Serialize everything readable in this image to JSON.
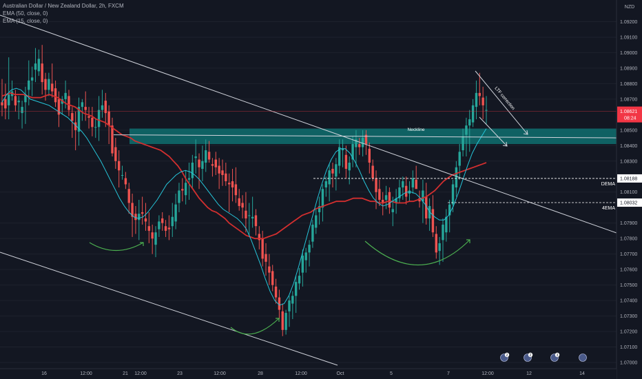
{
  "legend": {
    "symbol_line": "Australian Dollar / New Zealand Dollar, 2h, FXCM",
    "ema50_line": "EMA (50, close, 0)",
    "ema15_line": "EMA (15, close, 0)"
  },
  "currency_label": "NZD",
  "price_tag": {
    "value": "1.08621",
    "countdown": "08:24"
  },
  "level_tags": [
    {
      "name": "DEMA",
      "value": "1.08188"
    },
    {
      "name": "4EMA",
      "value": "1.08032"
    }
  ],
  "annotations": {
    "neckline": "Neckline",
    "ltf_correction": "LTF correction"
  },
  "colors": {
    "background": "#131722",
    "bull": "#26a69a",
    "bear": "#ef5350",
    "ema50": "#d32f2f",
    "ema15": "#26c6da",
    "zone": "#0f6e6e",
    "arc": "#4caf50",
    "line": "#d1d4dc",
    "price": "#f23645"
  },
  "event_badges": [
    "2",
    "2",
    "3",
    ""
  ],
  "chart_data": {
    "type": "candlestick",
    "symbol": "AUDNZD",
    "timeframe": "2h",
    "y_axis": {
      "side": "right",
      "ticks": [
        "1.09200",
        "1.09100",
        "1.09000",
        "1.08900",
        "1.08800",
        "1.08700",
        "1.08500",
        "1.08400",
        "1.08300",
        "1.08100",
        "1.07900",
        "1.07800",
        "1.07700",
        "1.07600",
        "1.07500",
        "1.07400",
        "1.07300",
        "1.07200",
        "1.07100",
        "1.07000"
      ],
      "range": [
        1.0696,
        1.0934
      ]
    },
    "x_axis": {
      "ticks": [
        "16",
        "12:00",
        "21",
        "12:00",
        "23",
        "12:00",
        "28",
        "12:00",
        "Oct",
        "5",
        "7",
        "12:00",
        "12",
        "14"
      ]
    },
    "candles_ohlc": [
      [
        1.0868,
        1.0883,
        1.0859,
        1.0866
      ],
      [
        1.087,
        1.088,
        1.0857,
        1.0864
      ],
      [
        1.0866,
        1.0897,
        1.0857,
        1.0873
      ],
      [
        1.0872,
        1.0882,
        1.0869,
        1.0875
      ],
      [
        1.0872,
        1.0876,
        1.0862,
        1.0866
      ],
      [
        1.0868,
        1.0872,
        1.0857,
        1.0869
      ],
      [
        1.0861,
        1.0869,
        1.0851,
        1.0865
      ],
      [
        1.0868,
        1.0878,
        1.0854,
        1.0873
      ],
      [
        1.0876,
        1.0895,
        1.0866,
        1.0882
      ],
      [
        1.0882,
        1.0891,
        1.0872,
        1.0884
      ],
      [
        1.0889,
        1.0903,
        1.0881,
        1.0893
      ],
      [
        1.0888,
        1.0902,
        1.0885,
        1.0896
      ],
      [
        1.0893,
        1.0905,
        1.0873,
        1.0881
      ],
      [
        1.0883,
        1.0887,
        1.0869,
        1.0876
      ],
      [
        1.0876,
        1.0887,
        1.0872,
        1.0883
      ],
      [
        1.088,
        1.0893,
        1.0871,
        1.0875
      ],
      [
        1.0877,
        1.0882,
        1.0865,
        1.0868
      ],
      [
        1.087,
        1.0875,
        1.0852,
        1.086
      ],
      [
        1.0867,
        1.0872,
        1.086,
        1.087
      ],
      [
        1.087,
        1.0882,
        1.0864,
        1.0874
      ],
      [
        1.0872,
        1.0876,
        1.0859,
        1.0863
      ],
      [
        1.0861,
        1.0865,
        1.0845,
        1.0856
      ],
      [
        1.0855,
        1.0862,
        1.0837,
        1.085
      ],
      [
        1.0849,
        1.0871,
        1.084,
        1.0865
      ],
      [
        1.0865,
        1.087,
        1.0856,
        1.0868
      ],
      [
        1.0865,
        1.0875,
        1.0856,
        1.0863
      ],
      [
        1.0859,
        1.0865,
        1.0851,
        1.0858
      ],
      [
        1.0858,
        1.0865,
        1.0846,
        1.0852
      ],
      [
        1.0852,
        1.0857,
        1.0845,
        1.0852
      ],
      [
        1.0852,
        1.0872,
        1.0843,
        1.0863
      ],
      [
        1.0863,
        1.0876,
        1.0858,
        1.0866
      ],
      [
        1.0869,
        1.0874,
        1.0852,
        1.0861
      ],
      [
        1.0862,
        1.0866,
        1.0841,
        1.0853
      ],
      [
        1.0853,
        1.0858,
        1.0833,
        1.0835
      ],
      [
        1.0839,
        1.0845,
        1.0825,
        1.083
      ],
      [
        1.083,
        1.0837,
        1.0813,
        1.0824
      ],
      [
        1.0821,
        1.0827,
        1.0818,
        1.0821
      ],
      [
        1.0819,
        1.0823,
        1.0812,
        1.0815
      ],
      [
        1.0812,
        1.0816,
        1.0796,
        1.0803
      ],
      [
        1.0803,
        1.0809,
        1.0781,
        1.0794
      ],
      [
        1.0796,
        1.0801,
        1.0783,
        1.0792
      ],
      [
        1.0792,
        1.0805,
        1.0779,
        1.0796
      ],
      [
        1.0797,
        1.0807,
        1.0789,
        1.0796
      ],
      [
        1.0793,
        1.0803,
        1.0785,
        1.0791
      ],
      [
        1.0788,
        1.0797,
        1.0777,
        1.0785
      ],
      [
        1.0784,
        1.0789,
        1.077,
        1.078
      ],
      [
        1.0776,
        1.0788,
        1.0768,
        1.0784
      ],
      [
        1.0786,
        1.0795,
        1.0781,
        1.0791
      ],
      [
        1.0793,
        1.0797,
        1.0785,
        1.079
      ],
      [
        1.0788,
        1.0792,
        1.0781,
        1.0785
      ],
      [
        1.0787,
        1.0795,
        1.0779,
        1.0786
      ],
      [
        1.0788,
        1.0803,
        1.0781,
        1.0794
      ],
      [
        1.0791,
        1.0809,
        1.0786,
        1.0802
      ],
      [
        1.0803,
        1.0816,
        1.0797,
        1.0811
      ],
      [
        1.0812,
        1.0819,
        1.0804,
        1.0811
      ],
      [
        1.0808,
        1.0824,
        1.0802,
        1.0816
      ],
      [
        1.0818,
        1.0829,
        1.0805,
        1.0819
      ],
      [
        1.0819,
        1.0834,
        1.0812,
        1.0829
      ],
      [
        1.0832,
        1.0844,
        1.0822,
        1.0833
      ],
      [
        1.0831,
        1.0835,
        1.0812,
        1.0826
      ],
      [
        1.0825,
        1.084,
        1.0817,
        1.083
      ],
      [
        1.0829,
        1.0844,
        1.0823,
        1.0837
      ],
      [
        1.0836,
        1.0843,
        1.0829,
        1.0831
      ],
      [
        1.0828,
        1.0832,
        1.082,
        1.0827
      ],
      [
        1.0831,
        1.0836,
        1.0821,
        1.0826
      ],
      [
        1.0827,
        1.0832,
        1.0812,
        1.0822
      ],
      [
        1.0824,
        1.0831,
        1.0814,
        1.0821
      ],
      [
        1.0822,
        1.0829,
        1.0814,
        1.0817
      ],
      [
        1.0816,
        1.0822,
        1.0797,
        1.0815
      ],
      [
        1.0817,
        1.0825,
        1.0804,
        1.0813
      ],
      [
        1.0815,
        1.0826,
        1.0803,
        1.0808
      ],
      [
        1.0806,
        1.0812,
        1.0798,
        1.0801
      ],
      [
        1.0803,
        1.0808,
        1.0793,
        1.08
      ],
      [
        1.0798,
        1.081,
        1.0784,
        1.0793
      ],
      [
        1.0795,
        1.0803,
        1.0781,
        1.0795
      ],
      [
        1.0793,
        1.0807,
        1.0787,
        1.0794
      ],
      [
        1.0795,
        1.0799,
        1.0782,
        1.0788
      ],
      [
        1.0783,
        1.0788,
        1.0773,
        1.0779
      ],
      [
        1.078,
        1.0785,
        1.0762,
        1.0767
      ],
      [
        1.077,
        1.0777,
        1.0756,
        1.0765
      ],
      [
        1.0762,
        1.077,
        1.075,
        1.0758
      ],
      [
        1.0759,
        1.0763,
        1.0746,
        1.075
      ],
      [
        1.0749,
        1.0754,
        1.0738,
        1.0742
      ],
      [
        1.0742,
        1.0747,
        1.0728,
        1.0734
      ],
      [
        1.0733,
        1.0738,
        1.0717,
        1.0721
      ],
      [
        1.0721,
        1.0734,
        1.0718,
        1.0732
      ],
      [
        1.0733,
        1.0743,
        1.0723,
        1.074
      ],
      [
        1.0738,
        1.0746,
        1.0728,
        1.0743
      ],
      [
        1.0743,
        1.0756,
        1.0732,
        1.0752
      ],
      [
        1.0751,
        1.0761,
        1.0747,
        1.0756
      ],
      [
        1.0758,
        1.0773,
        1.0749,
        1.0769
      ],
      [
        1.0766,
        1.0774,
        1.0758,
        1.0771
      ],
      [
        1.0771,
        1.0779,
        1.0762,
        1.0776
      ],
      [
        1.0778,
        1.0792,
        1.0774,
        1.0789
      ],
      [
        1.0787,
        1.0799,
        1.0783,
        1.0795
      ],
      [
        1.0797,
        1.0807,
        1.0789,
        1.0801
      ],
      [
        1.08,
        1.0815,
        1.0791,
        1.0812
      ],
      [
        1.0813,
        1.082,
        1.0807,
        1.0817
      ],
      [
        1.0815,
        1.0828,
        1.0804,
        1.0824
      ],
      [
        1.0825,
        1.0829,
        1.0813,
        1.0822
      ],
      [
        1.082,
        1.0832,
        1.0811,
        1.0828
      ],
      [
        1.0827,
        1.0844,
        1.0822,
        1.0839
      ],
      [
        1.0837,
        1.0844,
        1.0826,
        1.0838
      ],
      [
        1.0834,
        1.084,
        1.0819,
        1.0825
      ],
      [
        1.0824,
        1.0833,
        1.0815,
        1.0829
      ],
      [
        1.0831,
        1.0846,
        1.0826,
        1.0841
      ],
      [
        1.0839,
        1.085,
        1.0826,
        1.0844
      ],
      [
        1.0841,
        1.0845,
        1.0834,
        1.0839
      ],
      [
        1.0839,
        1.085,
        1.0833,
        1.0845
      ],
      [
        1.0847,
        1.085,
        1.0834,
        1.0841
      ],
      [
        1.0838,
        1.0842,
        1.0822,
        1.0829
      ],
      [
        1.0827,
        1.0831,
        1.0817,
        1.0819
      ],
      [
        1.0819,
        1.0824,
        1.0799,
        1.081
      ],
      [
        1.0812,
        1.0818,
        1.0801,
        1.0805
      ],
      [
        1.0805,
        1.081,
        1.0795,
        1.0803
      ],
      [
        1.0805,
        1.0814,
        1.0799,
        1.0808
      ],
      [
        1.081,
        1.0813,
        1.0796,
        1.08
      ],
      [
        1.0797,
        1.0807,
        1.0788,
        1.0799
      ],
      [
        1.0803,
        1.0812,
        1.0796,
        1.0806
      ],
      [
        1.0806,
        1.0818,
        1.0803,
        1.0813
      ],
      [
        1.0813,
        1.082,
        1.0805,
        1.0817
      ],
      [
        1.0814,
        1.082,
        1.0802,
        1.0807
      ],
      [
        1.0809,
        1.0817,
        1.0804,
        1.0811
      ],
      [
        1.0813,
        1.0824,
        1.0809,
        1.0819
      ],
      [
        1.0818,
        1.0827,
        1.0813,
        1.0812
      ],
      [
        1.0806,
        1.0811,
        1.08,
        1.0804
      ],
      [
        1.0804,
        1.0818,
        1.079,
        1.0811
      ],
      [
        1.0807,
        1.0816,
        1.0789,
        1.0793
      ],
      [
        1.0793,
        1.0806,
        1.0785,
        1.0801
      ],
      [
        1.0799,
        1.0808,
        1.0781,
        1.0784
      ],
      [
        1.0783,
        1.0788,
        1.0767,
        1.0771
      ],
      [
        1.0772,
        1.0781,
        1.0763,
        1.0777
      ],
      [
        1.0779,
        1.0793,
        1.0765,
        1.0789
      ],
      [
        1.0784,
        1.0799,
        1.0778,
        1.0794
      ],
      [
        1.0795,
        1.0805,
        1.0784,
        1.0802
      ],
      [
        1.0802,
        1.0818,
        1.0797,
        1.0815
      ],
      [
        1.0813,
        1.083,
        1.0807,
        1.0826
      ],
      [
        1.0827,
        1.0841,
        1.0818,
        1.0836
      ],
      [
        1.0837,
        1.0851,
        1.0833,
        1.0846
      ],
      [
        1.0847,
        1.0858,
        1.0833,
        1.0853
      ],
      [
        1.0853,
        1.0863,
        1.0836,
        1.0857
      ],
      [
        1.0855,
        1.087,
        1.0852,
        1.0866
      ],
      [
        1.0865,
        1.0882,
        1.0857,
        1.0874
      ],
      [
        1.0874,
        1.0887,
        1.0866,
        1.0872
      ],
      [
        1.0871,
        1.0878,
        1.0857,
        1.0866
      ],
      [
        1.0863,
        1.0872,
        1.0854,
        1.0863
      ]
    ],
    "ema50": [
      1.0872,
      1.0873,
      1.0874,
      1.0873,
      1.0873,
      1.0873,
      1.0872,
      1.0871,
      1.0871,
      1.0871,
      1.0872,
      1.0873,
      1.0872,
      1.0871,
      1.0869,
      1.0867,
      1.0866,
      1.0865,
      1.0863,
      1.0861,
      1.086,
      1.0859,
      1.0857,
      1.0856,
      1.0855,
      1.0853,
      1.0851,
      1.0849,
      1.0847,
      1.0846,
      1.0845,
      1.0843,
      1.0842,
      1.0841,
      1.084,
      1.0839,
      1.0838,
      1.0837,
      1.0835,
      1.0833,
      1.083,
      1.0827,
      1.0823,
      1.0818,
      1.0814,
      1.081,
      1.0806,
      1.0803,
      1.08,
      1.0798,
      1.0797,
      1.0795,
      1.0793,
      1.079,
      1.0788,
      1.0786,
      1.0784,
      1.0782,
      1.0781,
      1.078,
      1.078,
      1.078,
      1.0781,
      1.0782,
      1.0783,
      1.0785,
      1.0787,
      1.0789,
      1.0791,
      1.0793,
      1.0795,
      1.0796,
      1.0797,
      1.0799,
      1.08,
      1.0801,
      1.0802,
      1.0803,
      1.0804,
      1.0804,
      1.0804,
      1.0805,
      1.0806,
      1.0806,
      1.0806,
      1.0805,
      1.0804,
      1.0804,
      1.0803,
      1.0803,
      1.0804,
      1.0804,
      1.0803,
      1.0803,
      1.0803,
      1.0804,
      1.0804,
      1.0805,
      1.0806,
      1.0807,
      1.0809,
      1.0811,
      1.0814,
      1.0817,
      1.0819,
      1.0821,
      1.0822,
      1.0823,
      1.0824,
      1.0825,
      1.0826,
      1.0827,
      1.0828,
      1.0829
    ],
    "ema15": [
      1.0868,
      1.0873,
      1.0876,
      1.0877,
      1.0876,
      1.0873,
      1.087,
      1.0869,
      1.0868,
      1.0867,
      1.0866,
      1.0864,
      1.0862,
      1.086,
      1.0858,
      1.0855,
      1.0852,
      1.0849,
      1.0845,
      1.084,
      1.0835,
      1.083,
      1.0824,
      1.0818,
      1.0812,
      1.0806,
      1.0801,
      1.0797,
      1.0794,
      1.0793,
      1.0794,
      1.0797,
      1.0801,
      1.0805,
      1.081,
      1.0815,
      1.0818,
      1.0821,
      1.0823,
      1.0824,
      1.0823,
      1.0821,
      1.0818,
      1.0814,
      1.081,
      1.0806,
      1.0802,
      1.0799,
      1.0797,
      1.0795,
      1.0793,
      1.079,
      1.0786,
      1.0779,
      1.0771,
      1.0763,
      1.0754,
      1.0746,
      1.074,
      1.0737,
      1.0738,
      1.0743,
      1.0751,
      1.0761,
      1.0772,
      1.0783,
      1.0794,
      1.0805,
      1.0815,
      1.0824,
      1.0831,
      1.0836,
      1.0838,
      1.0838,
      1.0835,
      1.083,
      1.0824,
      1.0817,
      1.0811,
      1.0806,
      1.0803,
      1.0801,
      1.0802,
      1.0804,
      1.0806,
      1.0808,
      1.081,
      1.081,
      1.0809,
      1.0806,
      1.0802,
      1.0797,
      1.0794,
      1.0792,
      1.0792,
      1.0795,
      1.0801,
      1.0809,
      1.0818,
      1.0827,
      1.0835,
      1.0841,
      1.0846,
      1.0851
    ]
  }
}
